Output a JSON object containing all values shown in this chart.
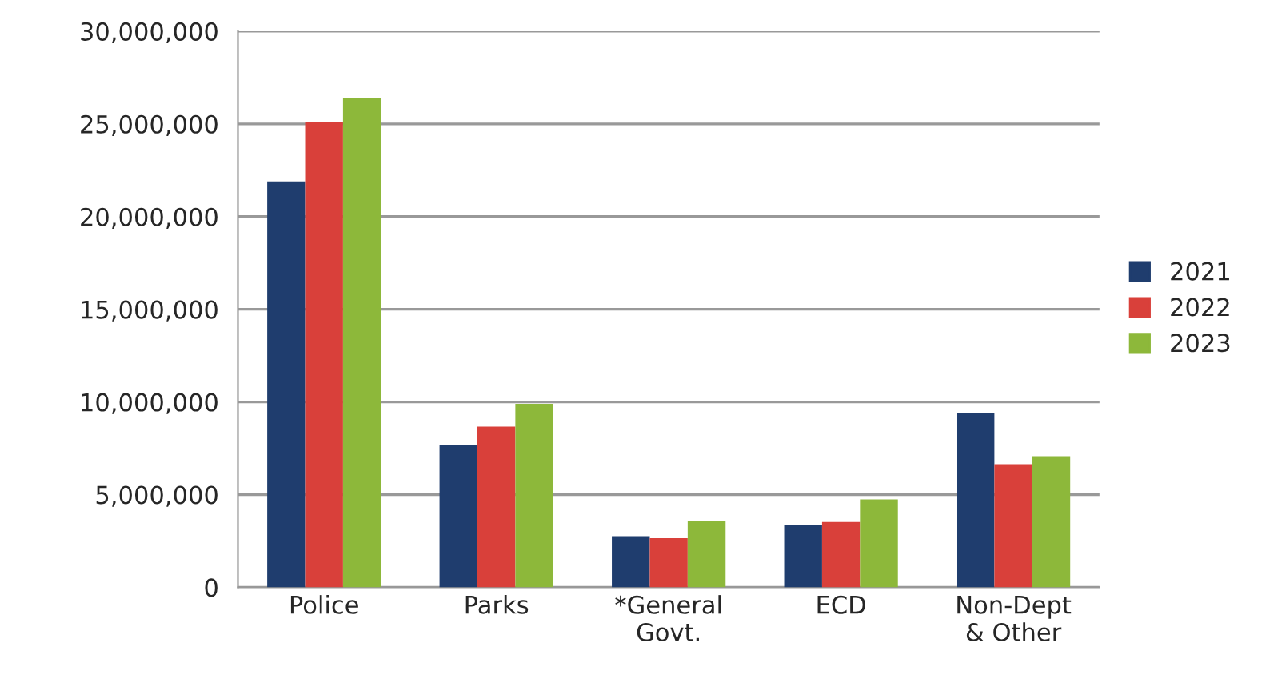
{
  "chart_data": {
    "type": "bar",
    "categories": [
      "Police",
      "Parks",
      "*General\nGovt.",
      "ECD",
      "Non-Dept\n& Other"
    ],
    "series": [
      {
        "name": "2021",
        "color": "#1f3d6e",
        "values": [
          21900000,
          7650000,
          2760000,
          3380000,
          9400000
        ]
      },
      {
        "name": "2022",
        "color": "#d9403a",
        "values": [
          25100000,
          8670000,
          2650000,
          3520000,
          6640000
        ]
      },
      {
        "name": "2023",
        "color": "#8db83a",
        "values": [
          26400000,
          9900000,
          3580000,
          4740000,
          7070000
        ]
      }
    ],
    "ylim": [
      0,
      30000000
    ],
    "yticks": [
      {
        "value": 0,
        "label": "0"
      },
      {
        "value": 5000000,
        "label": "5,000,000"
      },
      {
        "value": 10000000,
        "label": "10,000,000"
      },
      {
        "value": 15000000,
        "label": "15,000,000"
      },
      {
        "value": 20000000,
        "label": "20,000,000"
      },
      {
        "value": 25000000,
        "label": "25,000,000"
      },
      {
        "value": 30000000,
        "label": "30,000,000"
      }
    ],
    "grid": "y",
    "legend": "right"
  }
}
